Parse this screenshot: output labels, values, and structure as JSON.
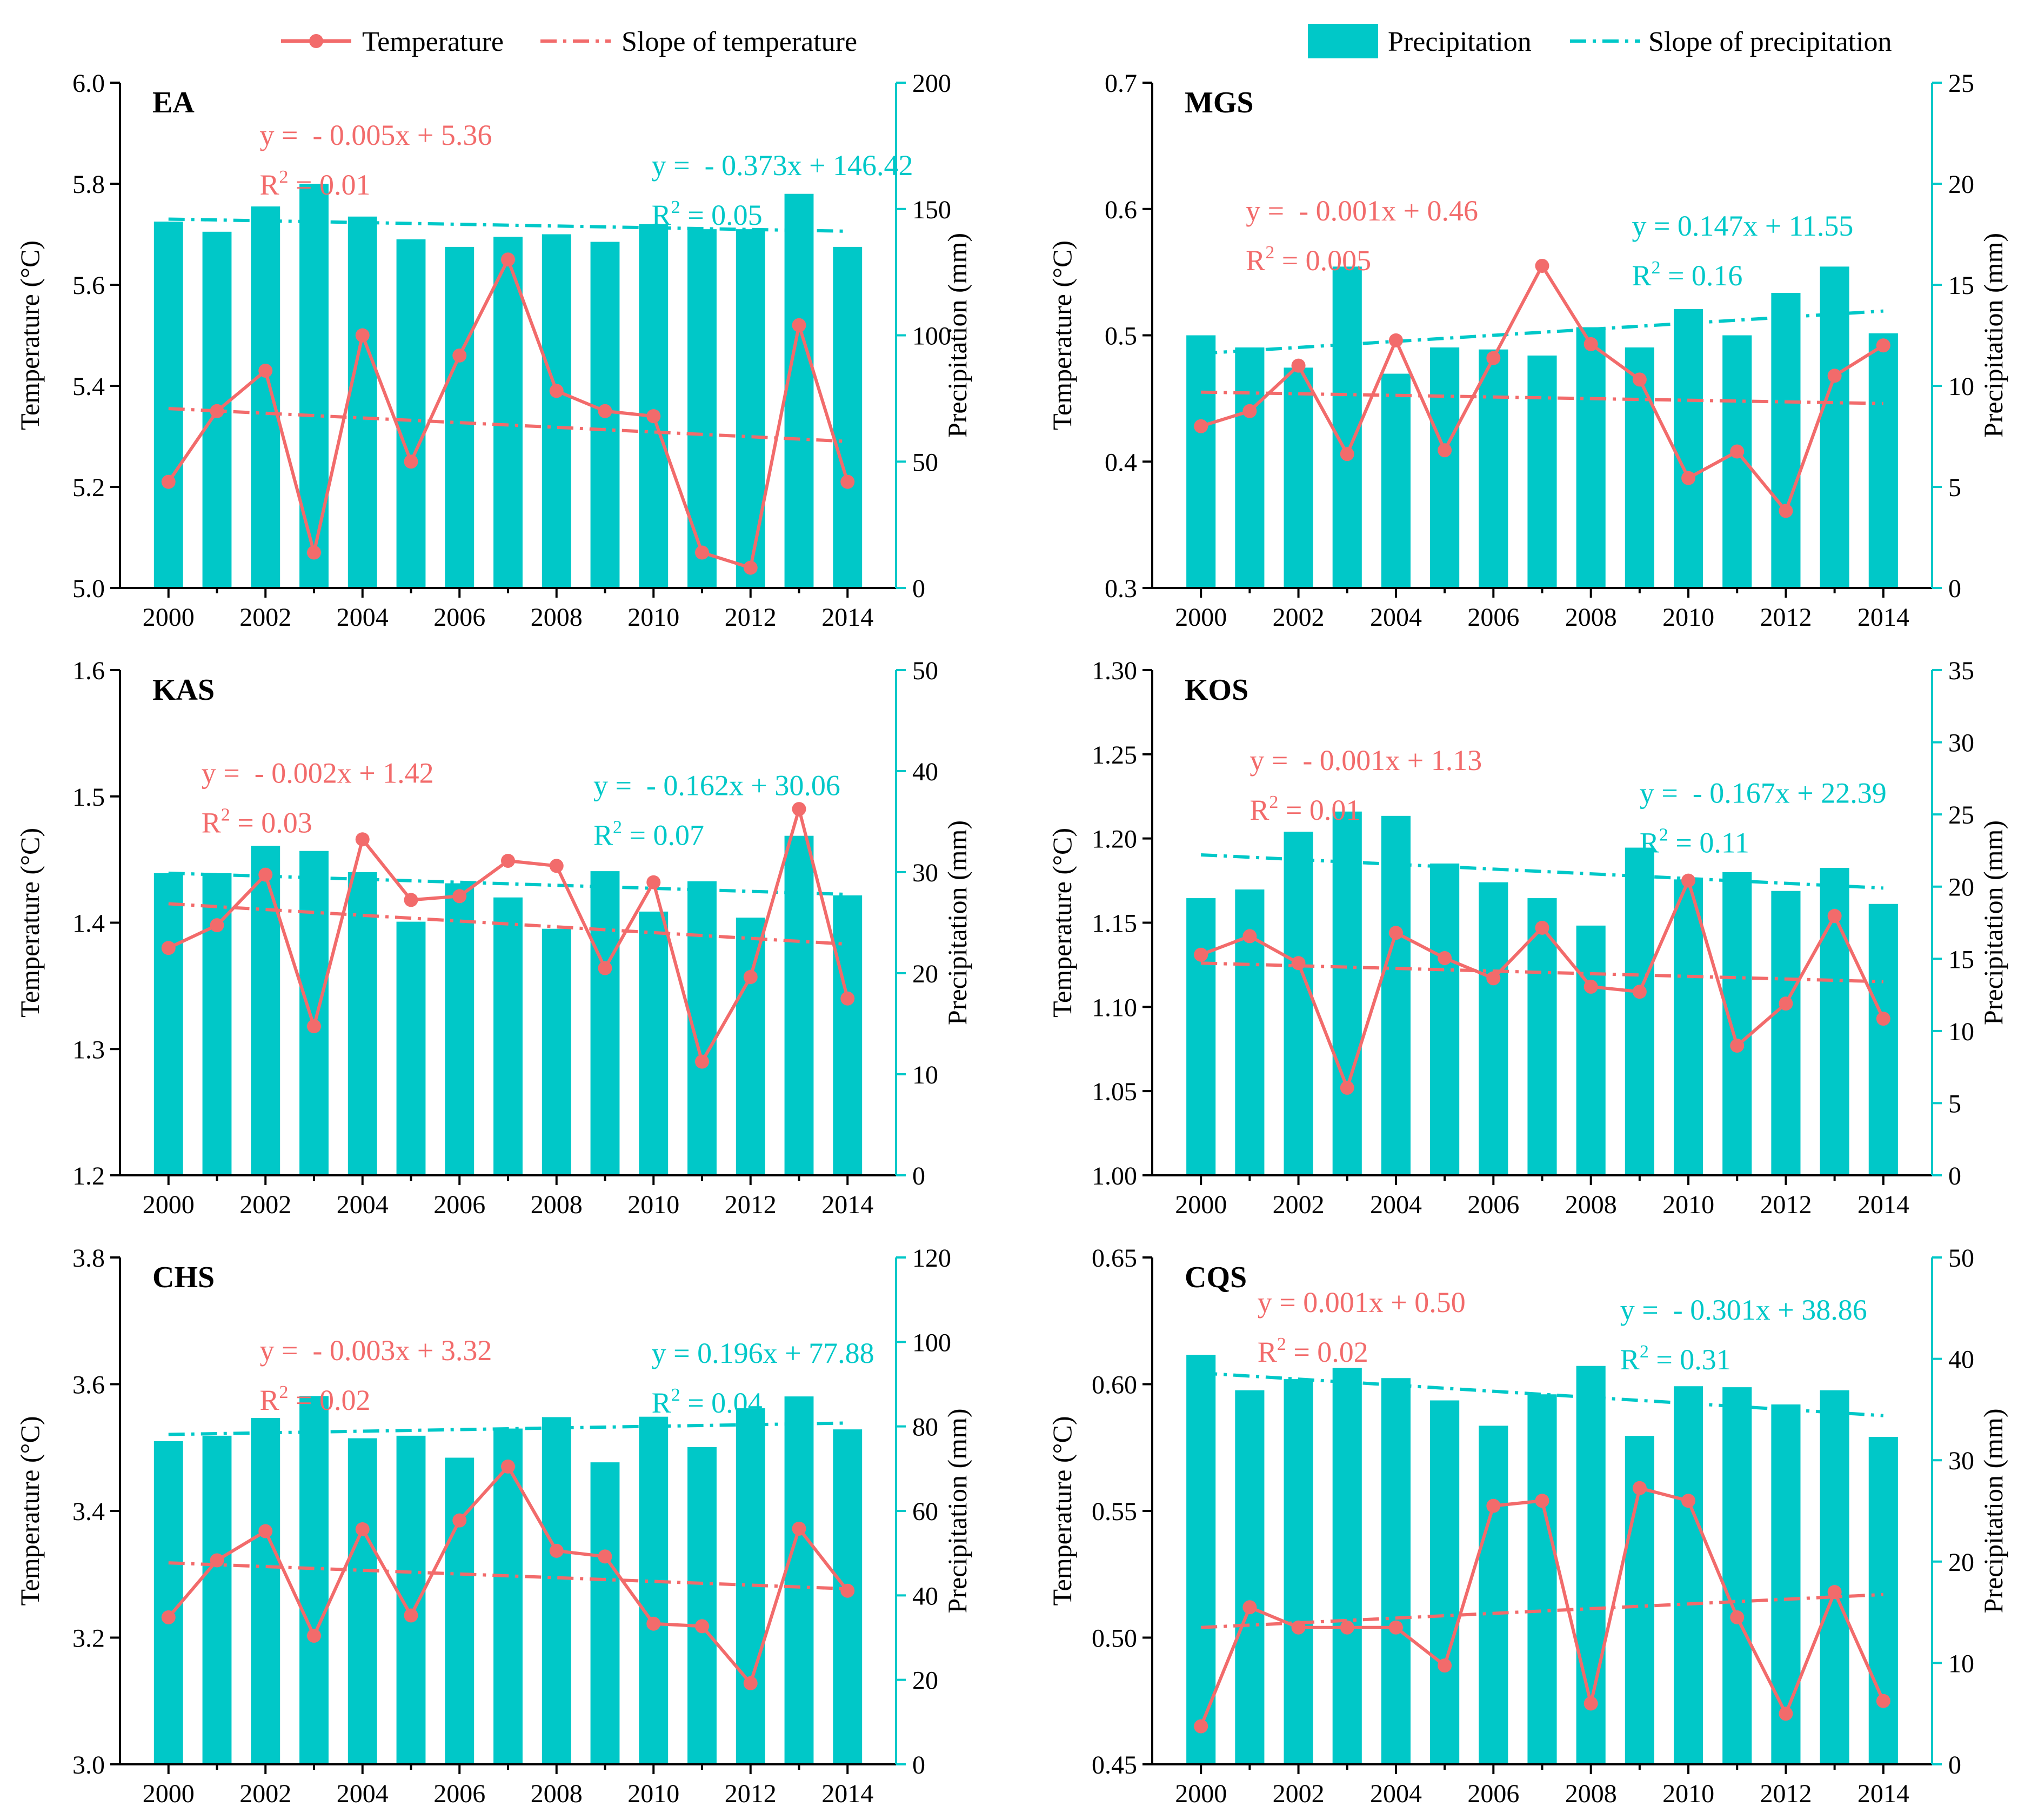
{
  "legend": {
    "temperature": "Temperature",
    "slope_temperature": "Slope of temperature",
    "precipitation": "Precipitation",
    "slope_precipitation": "Slope of precipitation"
  },
  "colors": {
    "temperature": "#f26b6b",
    "precipitation": "#00c8c8"
  },
  "chart_data": [
    {
      "type": "bar",
      "panel": "EA",
      "title": "EA",
      "categories": [
        2000,
        2001,
        2002,
        2003,
        2004,
        2005,
        2006,
        2007,
        2008,
        2009,
        2010,
        2011,
        2012,
        2013,
        2014
      ],
      "xticks": [
        "2000",
        "2002",
        "2004",
        "2006",
        "2008",
        "2010",
        "2012",
        "2014"
      ],
      "ylabel": "Temperature (°C)",
      "y2label": "Precipitation (mm)",
      "ylim": [
        5.0,
        6.0
      ],
      "yticks": [
        "5.0",
        "5.2",
        "5.4",
        "5.6",
        "5.8",
        "6.0"
      ],
      "y2lim": [
        0,
        200
      ],
      "y2ticks": [
        "0",
        "50",
        "100",
        "150",
        "200"
      ],
      "series": [
        {
          "name": "Temperature",
          "type": "line",
          "axis": "left",
          "values": [
            5.21,
            5.35,
            5.43,
            5.07,
            5.5,
            5.25,
            5.46,
            5.65,
            5.39,
            5.35,
            5.34,
            5.07,
            5.04,
            5.52,
            5.21
          ]
        },
        {
          "name": "Precipitation",
          "type": "bar",
          "axis": "right",
          "values": [
            145,
            141,
            151,
            160,
            147,
            138,
            135,
            139,
            140,
            137,
            144,
            142,
            142,
            156,
            135
          ]
        }
      ],
      "temp_fit": {
        "label": "y =  - 0.005x + 5.36",
        "r2": "0.01",
        "start": 5.355,
        "end": 5.29
      },
      "precip_fit": {
        "label": "y =  - 0.373x + 146.42",
        "r2": "0.05",
        "start": 146.0,
        "end": 141.2
      }
    },
    {
      "type": "bar",
      "panel": "MGS",
      "title": "MGS",
      "categories": [
        2000,
        2001,
        2002,
        2003,
        2004,
        2005,
        2006,
        2007,
        2008,
        2009,
        2010,
        2011,
        2012,
        2013,
        2014
      ],
      "xticks": [
        "2000",
        "2002",
        "2004",
        "2006",
        "2008",
        "2010",
        "2012",
        "2014"
      ],
      "ylabel": "Temperature (°C)",
      "y2label": "Precipitation (mm)",
      "ylim": [
        0.3,
        0.7
      ],
      "yticks": [
        "0.3",
        "0.4",
        "0.5",
        "0.6",
        "0.7"
      ],
      "y2lim": [
        0,
        25
      ],
      "y2ticks": [
        "0",
        "5",
        "10",
        "15",
        "20",
        "25"
      ],
      "series": [
        {
          "name": "Temperature",
          "type": "line",
          "axis": "left",
          "values": [
            0.428,
            0.44,
            0.476,
            0.406,
            0.496,
            0.409,
            0.482,
            0.555,
            0.493,
            0.465,
            0.387,
            0.408,
            0.361,
            0.468,
            0.492
          ]
        },
        {
          "name": "Precipitation",
          "type": "bar",
          "axis": "right",
          "values": [
            12.5,
            11.9,
            10.9,
            15.9,
            10.6,
            11.9,
            11.8,
            11.5,
            12.9,
            11.9,
            13.8,
            12.5,
            14.6,
            15.9,
            12.6
          ]
        }
      ],
      "temp_fit": {
        "label": "y =  - 0.001x + 0.46",
        "r2": "0.005",
        "start": 0.455,
        "end": 0.446
      },
      "precip_fit": {
        "label": "y = 0.147x + 11.55",
        "r2": "0.16",
        "start": 11.6,
        "end": 13.7
      }
    },
    {
      "type": "bar",
      "panel": "KAS",
      "title": "KAS",
      "categories": [
        2000,
        2001,
        2002,
        2003,
        2004,
        2005,
        2006,
        2007,
        2008,
        2009,
        2010,
        2011,
        2012,
        2013,
        2014
      ],
      "xticks": [
        "2000",
        "2002",
        "2004",
        "2006",
        "2008",
        "2010",
        "2012",
        "2014"
      ],
      "ylabel": "Temperature (°C)",
      "y2label": "Precipitation (mm)",
      "ylim": [
        1.2,
        1.6
      ],
      "yticks": [
        "1.2",
        "1.3",
        "1.4",
        "1.5",
        "1.6"
      ],
      "y2lim": [
        0,
        50
      ],
      "y2ticks": [
        "0",
        "10",
        "20",
        "30",
        "40",
        "50"
      ],
      "series": [
        {
          "name": "Temperature",
          "type": "line",
          "axis": "left",
          "values": [
            1.38,
            1.398,
            1.438,
            1.318,
            1.466,
            1.418,
            1.421,
            1.449,
            1.445,
            1.364,
            1.432,
            1.29,
            1.357,
            1.49,
            1.34
          ]
        },
        {
          "name": "Precipitation",
          "type": "bar",
          "axis": "right",
          "values": [
            29.9,
            29.9,
            32.6,
            32.1,
            30.0,
            25.1,
            28.9,
            27.5,
            24.4,
            30.1,
            26.1,
            29.1,
            25.5,
            33.6,
            27.7
          ]
        }
      ],
      "temp_fit": {
        "label": "y =  - 0.002x + 1.42",
        "r2": "0.03",
        "start": 1.415,
        "end": 1.383
      },
      "precip_fit": {
        "label": "y =  - 0.162x + 30.06",
        "r2": "0.07",
        "start": 29.9,
        "end": 27.8
      }
    },
    {
      "type": "bar",
      "panel": "KOS",
      "title": "KOS",
      "categories": [
        2000,
        2001,
        2002,
        2003,
        2004,
        2005,
        2006,
        2007,
        2008,
        2009,
        2010,
        2011,
        2012,
        2013,
        2014
      ],
      "xticks": [
        "2000",
        "2002",
        "2004",
        "2006",
        "2008",
        "2010",
        "2012",
        "2014"
      ],
      "ylabel": "Temperature (°C)",
      "y2label": "Precipitation (mm)",
      "ylim": [
        1.0,
        1.3
      ],
      "yticks": [
        "1.00",
        "1.05",
        "1.10",
        "1.15",
        "1.20",
        "1.25",
        "1.30"
      ],
      "y2lim": [
        0,
        35
      ],
      "y2ticks": [
        "0",
        "5",
        "10",
        "15",
        "20",
        "25",
        "30",
        "35"
      ],
      "series": [
        {
          "name": "Temperature",
          "type": "line",
          "axis": "left",
          "values": [
            1.131,
            1.142,
            1.126,
            1.052,
            1.144,
            1.129,
            1.117,
            1.147,
            1.112,
            1.109,
            1.175,
            1.077,
            1.102,
            1.154,
            1.093
          ]
        },
        {
          "name": "Precipitation",
          "type": "bar",
          "axis": "right",
          "values": [
            19.2,
            19.8,
            23.8,
            25.2,
            24.9,
            21.6,
            20.3,
            19.2,
            17.3,
            22.7,
            20.5,
            21.0,
            19.7,
            21.3,
            18.8
          ]
        }
      ],
      "temp_fit": {
        "label": "y =  - 0.001x + 1.13",
        "r2": "0.01",
        "start": 1.126,
        "end": 1.115
      },
      "precip_fit": {
        "label": "y =  - 0.167x + 22.39",
        "r2": "0.11",
        "start": 22.2,
        "end": 19.9
      }
    },
    {
      "type": "bar",
      "panel": "CHS",
      "title": "CHS",
      "categories": [
        2000,
        2001,
        2002,
        2003,
        2004,
        2005,
        2006,
        2007,
        2008,
        2009,
        2010,
        2011,
        2012,
        2013,
        2014
      ],
      "xticks": [
        "2000",
        "2002",
        "2004",
        "2006",
        "2008",
        "2010",
        "2012",
        "2014"
      ],
      "ylabel": "Temperature (°C)",
      "y2label": "Precipitation (mm)",
      "ylim": [
        3.0,
        3.8
      ],
      "yticks": [
        "3.0",
        "3.2",
        "3.4",
        "3.6",
        "3.8"
      ],
      "y2lim": [
        0,
        120
      ],
      "y2ticks": [
        "0",
        "20",
        "40",
        "60",
        "80",
        "100",
        "120"
      ],
      "series": [
        {
          "name": "Temperature",
          "type": "line",
          "axis": "left",
          "values": [
            3.232,
            3.322,
            3.368,
            3.203,
            3.371,
            3.235,
            3.385,
            3.47,
            3.337,
            3.328,
            3.222,
            3.218,
            3.128,
            3.372,
            3.274
          ]
        },
        {
          "name": "Precipitation",
          "type": "bar",
          "axis": "right",
          "values": [
            76.5,
            77.8,
            82.0,
            87.2,
            77.2,
            77.8,
            72.6,
            79.5,
            82.2,
            71.5,
            82.3,
            75.1,
            84.3,
            87.1,
            79.3
          ]
        }
      ],
      "temp_fit": {
        "label": "y =  - 0.003x + 3.32",
        "r2": "0.02",
        "start": 3.318,
        "end": 3.277
      },
      "precip_fit": {
        "label": "y = 0.196x + 77.88",
        "r2": "0.04",
        "start": 78.1,
        "end": 80.8
      }
    },
    {
      "type": "bar",
      "panel": "CQS",
      "title": "CQS",
      "categories": [
        2000,
        2001,
        2002,
        2003,
        2004,
        2005,
        2006,
        2007,
        2008,
        2009,
        2010,
        2011,
        2012,
        2013,
        2014
      ],
      "xticks": [
        "2000",
        "2002",
        "2004",
        "2006",
        "2008",
        "2010",
        "2012",
        "2014"
      ],
      "ylabel": "Temperature (°C)",
      "y2label": "Precipitation (mm)",
      "ylim": [
        0.45,
        0.65
      ],
      "yticks": [
        "0.45",
        "0.50",
        "0.55",
        "0.60",
        "0.65"
      ],
      "y2lim": [
        0,
        50
      ],
      "y2ticks": [
        "0",
        "10",
        "20",
        "30",
        "40",
        "50"
      ],
      "series": [
        {
          "name": "Temperature",
          "type": "line",
          "axis": "left",
          "values": [
            0.465,
            0.512,
            0.504,
            0.504,
            0.504,
            0.489,
            0.552,
            0.554,
            0.474,
            0.559,
            0.554,
            0.508,
            0.47,
            0.518,
            0.475
          ]
        },
        {
          "name": "Precipitation",
          "type": "bar",
          "axis": "right",
          "values": [
            40.4,
            36.9,
            38.0,
            39.1,
            38.1,
            35.9,
            33.4,
            36.5,
            39.3,
            32.4,
            37.3,
            37.2,
            35.5,
            36.9,
            32.3
          ]
        }
      ],
      "temp_fit": {
        "label": "y = 0.001x + 0.50",
        "r2": "0.02",
        "start": 0.504,
        "end": 0.517
      },
      "precip_fit": {
        "label": "y =  - 0.301x + 38.86",
        "r2": "0.31",
        "start": 38.6,
        "end": 34.4
      }
    }
  ]
}
